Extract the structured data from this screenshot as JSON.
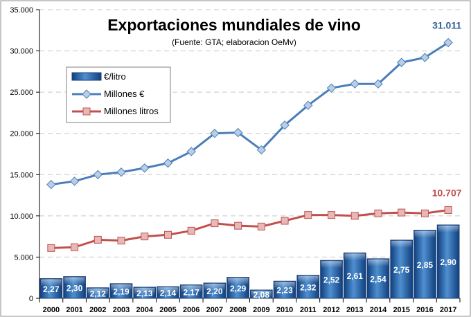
{
  "chart_data": {
    "type": "bar",
    "title": "Exportaciones mundiales de vino",
    "subtitle": "(Fuente: GTA; elaboracion OeMv)",
    "categories": [
      "2000",
      "2001",
      "2002",
      "2003",
      "2004",
      "2005",
      "2006",
      "2007",
      "2008",
      "2009",
      "2010",
      "2011",
      "2012",
      "2013",
      "2014",
      "2015",
      "2016",
      "2017"
    ],
    "ylim": [
      0,
      35000
    ],
    "yticks": [
      0,
      5000,
      10000,
      15000,
      20000,
      25000,
      30000,
      35000
    ],
    "ytick_labels": [
      "0",
      "5.000",
      "10.000",
      "15.000",
      "20.000",
      "25.000",
      "30.000",
      "35.000"
    ],
    "grid": true,
    "legend_placement": "top-left",
    "series": [
      {
        "name": "€/litro",
        "kind": "bar",
        "color": "#1f5fa8",
        "values": [
          2.27,
          2.3,
          2.12,
          2.19,
          2.13,
          2.14,
          2.17,
          2.2,
          2.29,
          2.08,
          2.23,
          2.32,
          2.52,
          2.61,
          2.54,
          2.75,
          2.85,
          2.9
        ],
        "labels": [
          "2,27",
          "2,30",
          "2,12",
          "2,19",
          "2,13",
          "2,14",
          "2,17",
          "2,20",
          "2,29",
          "2,08",
          "2,23",
          "2,32",
          "2,52",
          "2,61",
          "2,54",
          "2,75",
          "2,85",
          "2,90"
        ]
      },
      {
        "name": "Millones €",
        "kind": "line",
        "color": "#4a7ebb",
        "marker_fill": "#b9cde5",
        "values": [
          13800,
          14200,
          15000,
          15300,
          15800,
          16400,
          17800,
          20000,
          20100,
          18000,
          21000,
          23400,
          25500,
          26000,
          26000,
          28600,
          29200,
          31011
        ],
        "end_label": "31.011",
        "end_label_color": "#2e5f96"
      },
      {
        "name": "Millones litros",
        "kind": "line",
        "color": "#c0504d",
        "marker_fill": "#e6b9b8",
        "values": [
          6100,
          6200,
          7100,
          7000,
          7500,
          7700,
          8200,
          9100,
          8800,
          8700,
          9400,
          10100,
          10100,
          10000,
          10300,
          10400,
          10300,
          10707
        ],
        "end_label": "10.707",
        "end_label_color": "#c0504d"
      }
    ]
  }
}
